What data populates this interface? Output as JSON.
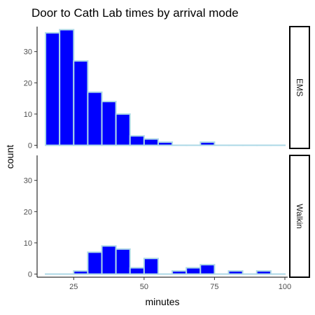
{
  "chart_data": {
    "type": "bar",
    "title": "Door to Cath Lab times by arrival mode",
    "xlabel": "minutes",
    "ylabel": "count",
    "xlim": [
      12,
      101
    ],
    "ylim": [
      -1,
      38
    ],
    "x_ticks": [
      25,
      50,
      75,
      100
    ],
    "y_ticks": [
      0,
      10,
      20,
      30
    ],
    "bin_width": 5,
    "bin_starts": [
      15,
      20,
      25,
      30,
      35,
      40,
      45,
      50,
      55,
      60,
      65,
      70,
      75,
      80,
      85,
      90,
      95
    ],
    "fill_color": "#0000ff",
    "outline_color": "#add8e6",
    "grid": false,
    "panels": [
      {
        "name": "EMS",
        "values": [
          36,
          37,
          27,
          17,
          14,
          10,
          3,
          2,
          1,
          0,
          0,
          1,
          0,
          0,
          0,
          0,
          0
        ]
      },
      {
        "name": "Walkin",
        "values": [
          0,
          0,
          1,
          7,
          9,
          8,
          2,
          5,
          0,
          1,
          2,
          3,
          0,
          1,
          0,
          1,
          0
        ]
      }
    ]
  }
}
